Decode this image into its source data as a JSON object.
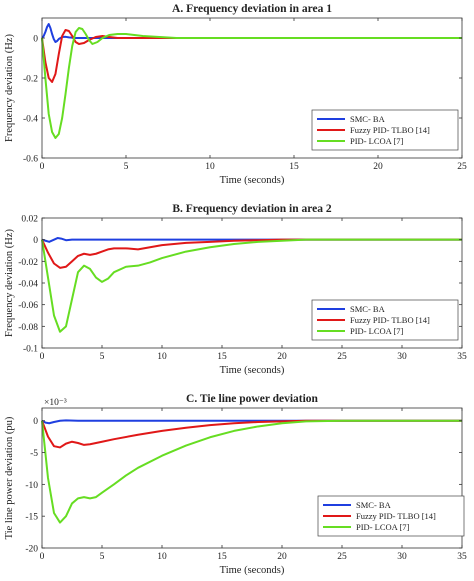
{
  "chart_data": [
    {
      "type": "line",
      "title": "A. Frequency deviation in area 1",
      "xlabel": "Time (seconds)",
      "ylabel": "Frequency deviation (Hz)",
      "xlim": [
        0,
        25
      ],
      "ylim": [
        -0.6,
        0.1
      ],
      "xticks": [
        0,
        5,
        10,
        15,
        20,
        25
      ],
      "yticks": [
        0,
        -0.2,
        -0.4,
        -0.6
      ],
      "ytick_labels": [
        "0",
        "-0.2",
        "-0.4",
        "-0.6"
      ],
      "grid": false,
      "legend_position": "right-middle",
      "series": [
        {
          "name": "SMC- BA",
          "color": "#1f3fe0",
          "x": [
            0,
            0.1,
            0.2,
            0.3,
            0.4,
            0.5,
            0.6,
            0.7,
            0.8,
            0.9,
            1.0,
            1.2,
            1.4,
            1.6,
            2.0,
            2.5,
            3,
            4,
            6,
            25
          ],
          "y": [
            0,
            0.01,
            0.03,
            0.055,
            0.07,
            0.05,
            0.02,
            -0.005,
            -0.02,
            -0.015,
            -0.005,
            0.005,
            0.006,
            0.003,
            0,
            0,
            0,
            0,
            0,
            0
          ]
        },
        {
          "name": "Fuzzy PID- TLBO [14]",
          "color": "#e01818",
          "x": [
            0,
            0.2,
            0.4,
            0.6,
            0.8,
            1.0,
            1.2,
            1.4,
            1.6,
            1.8,
            2.0,
            2.2,
            2.5,
            2.8,
            3.2,
            3.6,
            4.0,
            4.5,
            5,
            6,
            8,
            25
          ],
          "y": [
            0,
            -0.12,
            -0.2,
            -0.22,
            -0.18,
            -0.08,
            0.01,
            0.04,
            0.035,
            0.01,
            -0.02,
            -0.03,
            -0.025,
            -0.01,
            0.005,
            0.01,
            0.005,
            0,
            0,
            0,
            0,
            0
          ]
        },
        {
          "name": "PID- LCOA [7]",
          "color": "#66dd22",
          "x": [
            0,
            0.2,
            0.4,
            0.6,
            0.8,
            1.0,
            1.2,
            1.4,
            1.6,
            1.8,
            2.0,
            2.2,
            2.4,
            2.6,
            2.8,
            3.0,
            3.3,
            3.6,
            4.0,
            4.5,
            5.0,
            5.5,
            6.0,
            7,
            8,
            10,
            25
          ],
          "y": [
            0,
            -0.2,
            -0.38,
            -0.47,
            -0.5,
            -0.48,
            -0.4,
            -0.28,
            -0.15,
            -0.04,
            0.03,
            0.05,
            0.045,
            0.02,
            -0.01,
            -0.03,
            -0.02,
            0,
            0.015,
            0.02,
            0.02,
            0.015,
            0.01,
            0.005,
            0,
            0,
            0
          ]
        }
      ]
    },
    {
      "type": "line",
      "title": "B. Frequency deviation in area 2",
      "xlabel": "Time (seconds)",
      "ylabel": "Frequency deviation (Hz)",
      "xlim": [
        0,
        35
      ],
      "ylim": [
        -0.1,
        0.02
      ],
      "xticks": [
        0,
        5,
        10,
        15,
        20,
        25,
        30,
        35
      ],
      "yticks": [
        0.02,
        0,
        -0.02,
        -0.04,
        -0.06,
        -0.08,
        -0.1
      ],
      "ytick_labels": [
        "0.02",
        "0",
        "-0.02",
        "-0.04",
        "-0.06",
        "-0.08",
        "-0.1"
      ],
      "grid": false,
      "legend_position": "right-middle",
      "series": [
        {
          "name": "SMC- BA",
          "color": "#1f3fe0",
          "x": [
            0,
            0.3,
            0.6,
            1.0,
            1.3,
            1.6,
            2.0,
            2.5,
            3,
            5,
            35
          ],
          "y": [
            0,
            -0.001,
            -0.002,
            0,
            0.0015,
            0.001,
            -0.0005,
            0,
            0,
            0,
            0
          ]
        },
        {
          "name": "Fuzzy PID- TLBO [14]",
          "color": "#e01818",
          "x": [
            0,
            0.5,
            1.0,
            1.5,
            2.0,
            2.5,
            3.0,
            3.5,
            4.0,
            4.5,
            5.0,
            5.5,
            6.0,
            7.0,
            8.0,
            9.0,
            10,
            11,
            12,
            14,
            16,
            18,
            20,
            25,
            35
          ],
          "y": [
            0,
            -0.012,
            -0.022,
            -0.026,
            -0.025,
            -0.02,
            -0.015,
            -0.013,
            -0.014,
            -0.013,
            -0.011,
            -0.009,
            -0.008,
            -0.008,
            -0.009,
            -0.007,
            -0.005,
            -0.004,
            -0.003,
            -0.002,
            -0.001,
            -0.0005,
            0,
            0,
            0
          ]
        },
        {
          "name": "PID- LCOA [7]",
          "color": "#66dd22",
          "x": [
            0,
            0.5,
            1.0,
            1.5,
            2.0,
            2.5,
            3.0,
            3.5,
            4.0,
            4.5,
            5.0,
            5.5,
            6.0,
            7.0,
            8.0,
            9.0,
            10,
            12,
            14,
            16,
            18,
            20,
            22,
            25,
            35
          ],
          "y": [
            0,
            -0.035,
            -0.07,
            -0.085,
            -0.08,
            -0.055,
            -0.03,
            -0.024,
            -0.027,
            -0.035,
            -0.039,
            -0.036,
            -0.03,
            -0.025,
            -0.024,
            -0.021,
            -0.017,
            -0.011,
            -0.007,
            -0.004,
            -0.002,
            -0.001,
            0,
            0,
            0
          ]
        }
      ]
    },
    {
      "type": "line",
      "title": "C. Tie line power deviation",
      "xlabel": "Time (seconds)",
      "ylabel": "Tie line power deviation (pu)",
      "scale_label": "×10⁻³",
      "xlim": [
        0,
        35
      ],
      "ylim": [
        -20,
        2
      ],
      "xticks": [
        0,
        5,
        10,
        15,
        20,
        25,
        30,
        35
      ],
      "yticks": [
        0,
        -5,
        -10,
        -15,
        -20
      ],
      "ytick_labels": [
        "0",
        "-5",
        "-10",
        "-15",
        "-20"
      ],
      "grid": false,
      "legend_position": "bottom-right",
      "series": [
        {
          "name": "SMC- BA",
          "color": "#1f3fe0",
          "x": [
            0,
            0.3,
            0.6,
            1.0,
            1.5,
            2.0,
            3.0,
            35
          ],
          "y": [
            0,
            -0.3,
            -0.4,
            -0.2,
            0,
            0.05,
            0,
            0
          ]
        },
        {
          "name": "Fuzzy PID- TLBO [14]",
          "color": "#e01818",
          "x": [
            0,
            0.5,
            1.0,
            1.5,
            2.0,
            2.5,
            3.0,
            3.5,
            4.0,
            5,
            6,
            8,
            10,
            12,
            14,
            16,
            18,
            20,
            22,
            25,
            35
          ],
          "y": [
            0,
            -2.5,
            -4.0,
            -4.2,
            -3.6,
            -3.3,
            -3.5,
            -3.8,
            -3.7,
            -3.3,
            -2.9,
            -2.2,
            -1.6,
            -1.1,
            -0.7,
            -0.4,
            -0.2,
            -0.1,
            0,
            0,
            0
          ]
        },
        {
          "name": "PID- LCOA [7]",
          "color": "#66dd22",
          "x": [
            0,
            0.5,
            1.0,
            1.5,
            2.0,
            2.5,
            3.0,
            3.5,
            4.0,
            4.5,
            5,
            6,
            7,
            8,
            10,
            12,
            14,
            16,
            18,
            20,
            22,
            25,
            35
          ],
          "y": [
            0,
            -9,
            -14.5,
            -16,
            -15,
            -13,
            -12.2,
            -12,
            -12.2,
            -12,
            -11.3,
            -10,
            -8.6,
            -7.4,
            -5.5,
            -3.9,
            -2.6,
            -1.6,
            -0.9,
            -0.4,
            -0.1,
            0,
            0
          ]
        }
      ]
    }
  ]
}
